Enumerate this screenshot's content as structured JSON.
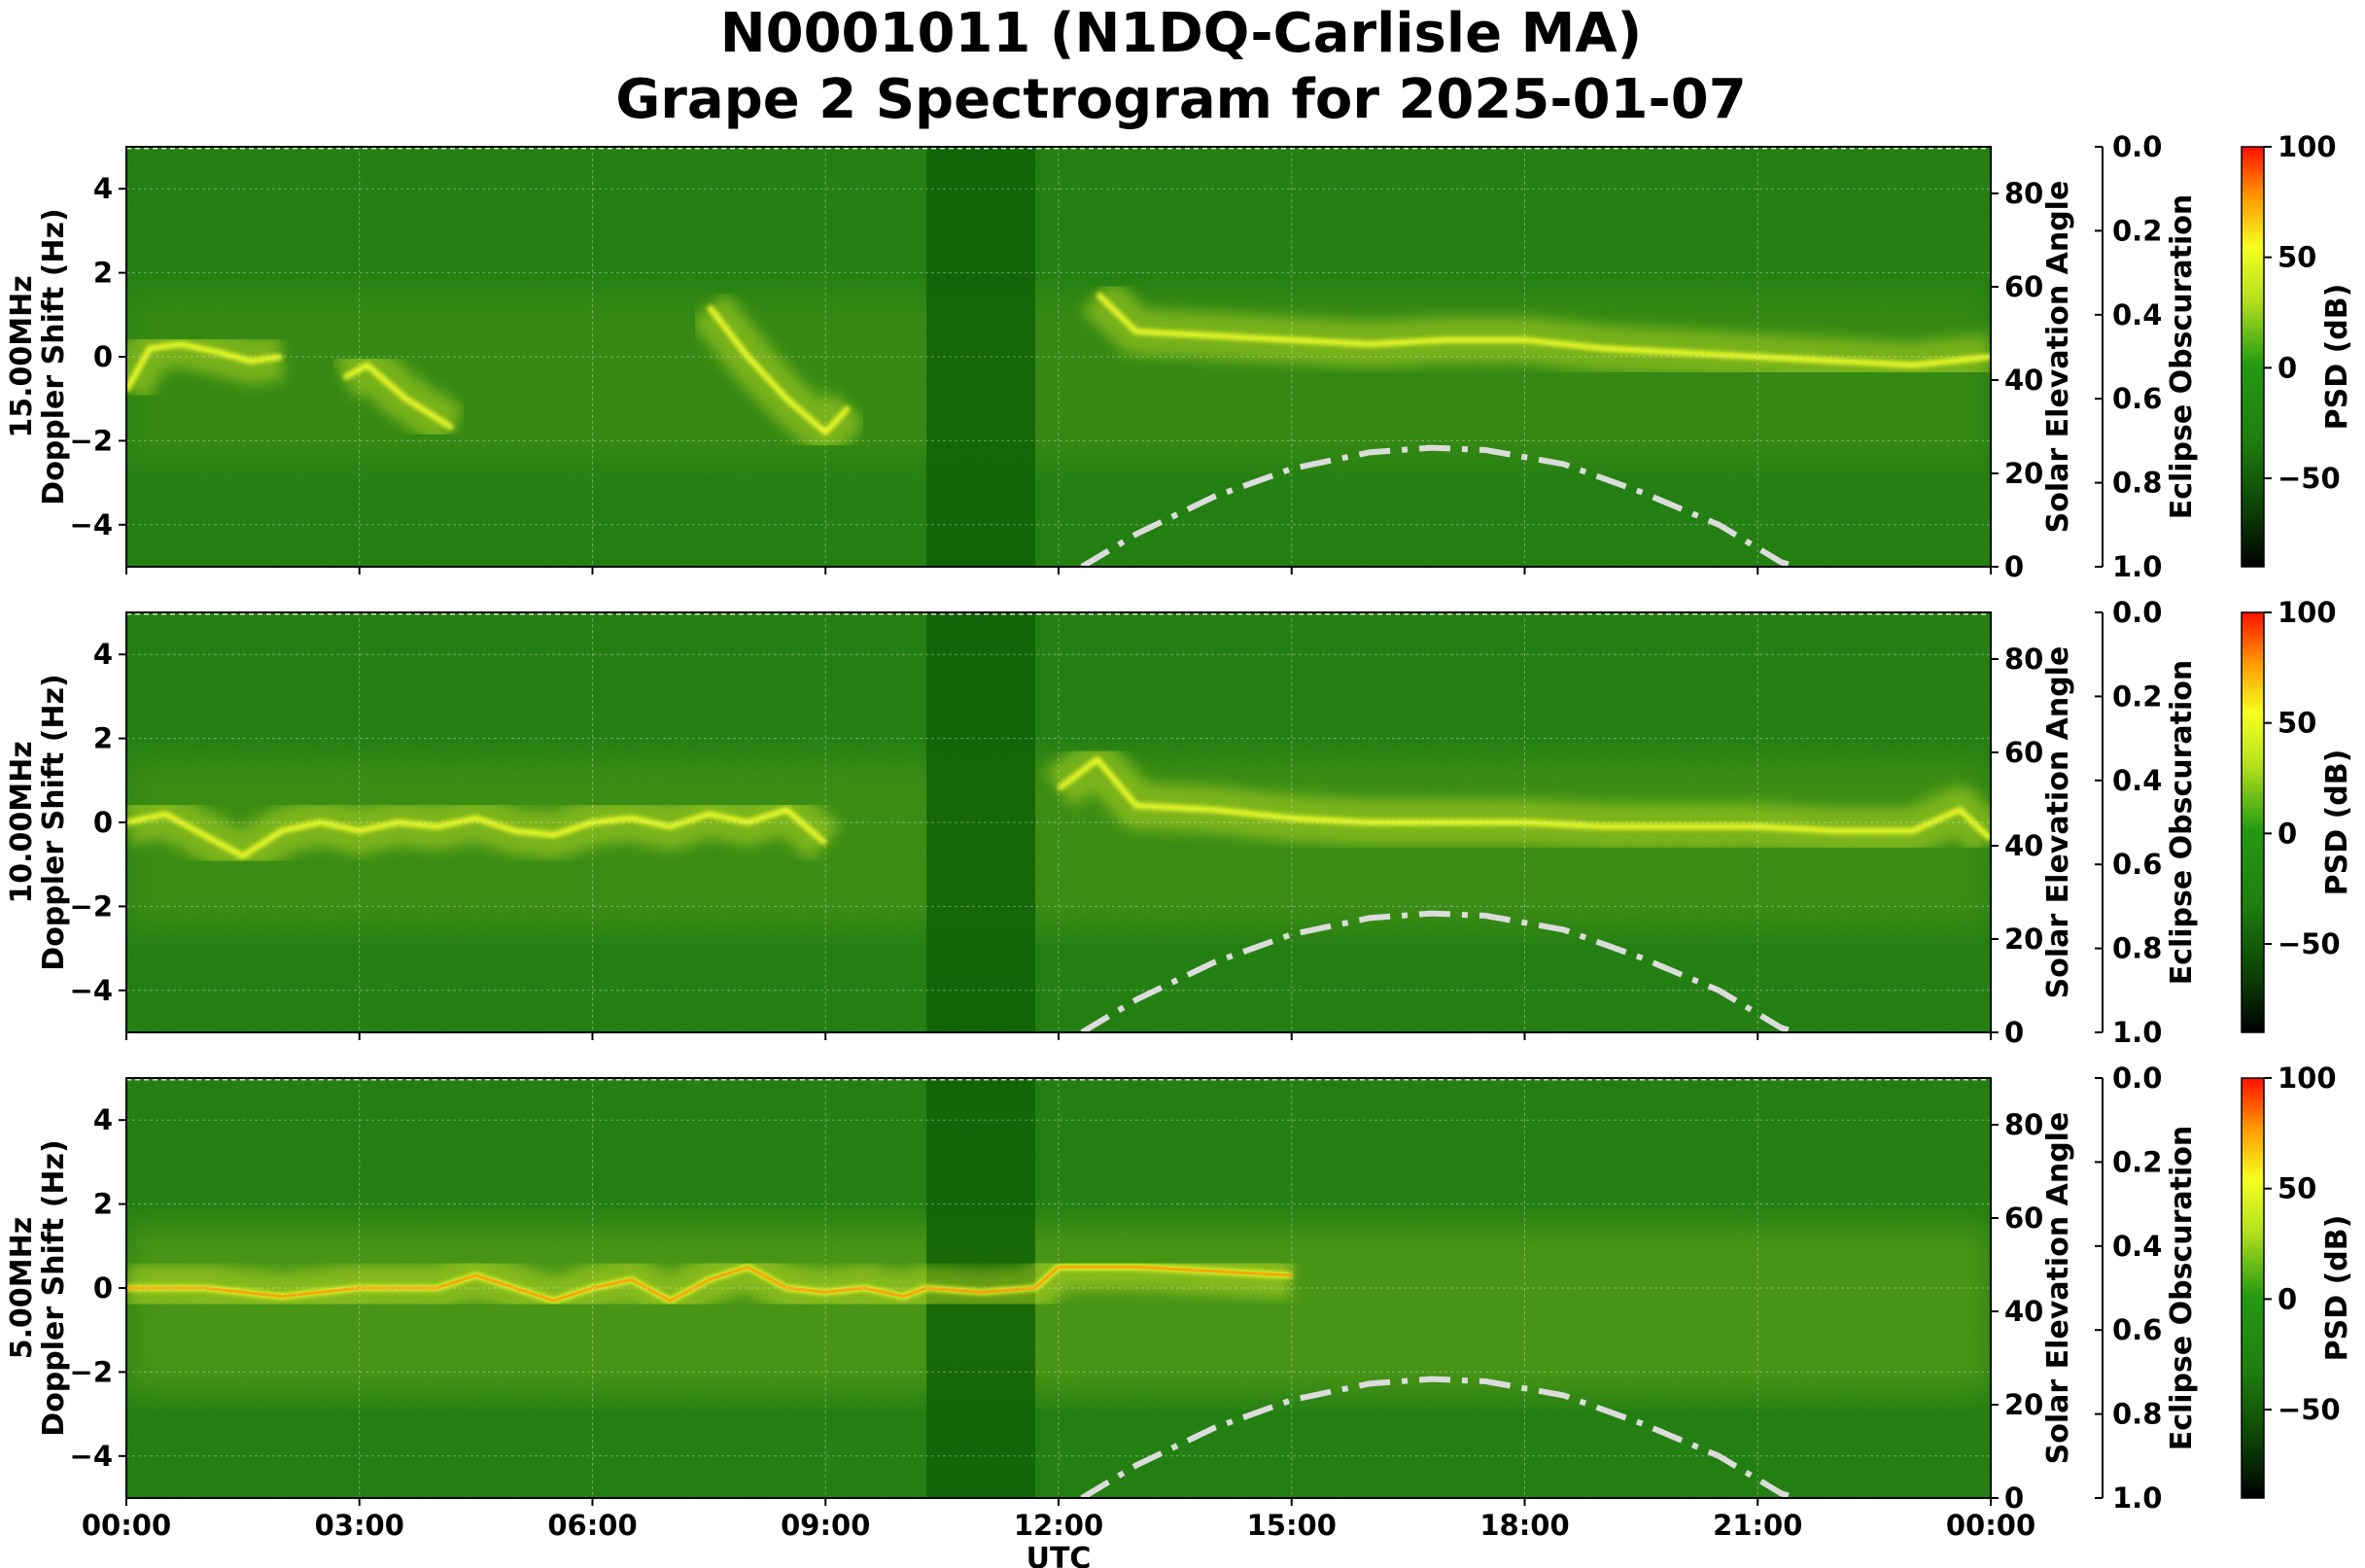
{
  "title_line1": "N0001011 (N1DQ-Carlisle MA)",
  "title_line2": "Grape 2 Spectrogram for 2025-01-07",
  "colors": {
    "background_green": "#1e7d0e",
    "dark_band": "#0f6206",
    "signal_yellow": "#f5ff2a",
    "signal_orange": "#ff8c00",
    "solar_curve": "#dcdcdc"
  },
  "chart_data": [
    {
      "type": "heatmap",
      "panel": "15.00MHz",
      "ylabel_line1": "15.00MHz",
      "ylabel_line2": "Doppler Shift (Hz)",
      "right_label": "Solar Elevation Angle",
      "eclipse_label": "Eclipse Obscuration",
      "colorbar_label": "PSD (dB)",
      "xlabel": "",
      "ylim": [
        -5,
        5
      ],
      "yticks": [
        "4",
        "2",
        "0",
        "−2",
        "−4"
      ],
      "solar_ticks": [
        "80",
        "60",
        "40",
        "20",
        "0"
      ],
      "eclipse_ticks": [
        "0.0",
        "0.2",
        "0.4",
        "0.6",
        "0.8",
        "1.0"
      ],
      "colorbar_ticks": [
        "100",
        "50",
        "0",
        "−50"
      ],
      "dark_band_utc_hours": [
        10.3,
        11.7
      ],
      "doppler_trace_hz": [
        [
          0.0,
          -0.8
        ],
        [
          0.3,
          0.2
        ],
        [
          0.7,
          0.3
        ],
        [
          1.2,
          0.1
        ],
        [
          1.6,
          -0.1
        ],
        [
          2.0,
          0.0
        ]
      ],
      "doppler_trace2_hz": [
        [
          2.8,
          -0.5
        ],
        [
          3.1,
          -0.2
        ],
        [
          3.6,
          -1.0
        ],
        [
          4.2,
          -1.7
        ]
      ],
      "doppler_trace3_hz": [
        [
          7.5,
          1.2
        ],
        [
          8.0,
          0.0
        ],
        [
          8.5,
          -1.0
        ],
        [
          9.0,
          -1.8
        ],
        [
          9.3,
          -1.2
        ]
      ],
      "doppler_trace4_hz": [
        [
          12.5,
          1.5
        ],
        [
          13.0,
          0.6
        ],
        [
          14.0,
          0.5
        ],
        [
          15.0,
          0.4
        ],
        [
          16.0,
          0.3
        ],
        [
          17.0,
          0.4
        ],
        [
          18.0,
          0.4
        ],
        [
          19.0,
          0.2
        ],
        [
          20.0,
          0.1
        ],
        [
          21.0,
          0.0
        ],
        [
          22.0,
          -0.1
        ],
        [
          23.0,
          -0.2
        ],
        [
          24.0,
          0.0
        ]
      ],
      "solar_elevation_deg": [
        [
          12.3,
          0
        ],
        [
          13.0,
          7
        ],
        [
          14.0,
          15
        ],
        [
          15.0,
          21
        ],
        [
          16.0,
          24.5
        ],
        [
          16.8,
          25.5
        ],
        [
          17.5,
          25
        ],
        [
          18.5,
          22
        ],
        [
          19.5,
          16
        ],
        [
          20.5,
          9
        ],
        [
          21.3,
          1
        ],
        [
          21.5,
          0
        ]
      ]
    },
    {
      "type": "heatmap",
      "panel": "10.00MHz",
      "ylabel_line1": "10.00MHz",
      "ylabel_line2": "Doppler Shift (Hz)",
      "right_label": "Solar Elevation Angle",
      "eclipse_label": "Eclipse Obscuration",
      "colorbar_label": "PSD (dB)",
      "xlabel": "",
      "ylim": [
        -5,
        5
      ],
      "yticks": [
        "4",
        "2",
        "0",
        "−2",
        "−4"
      ],
      "solar_ticks": [
        "80",
        "60",
        "40",
        "20",
        "0"
      ],
      "eclipse_ticks": [
        "0.0",
        "0.2",
        "0.4",
        "0.6",
        "0.8",
        "1.0"
      ],
      "colorbar_ticks": [
        "100",
        "50",
        "0",
        "−50"
      ],
      "dark_band_utc_hours": [
        10.3,
        11.7
      ],
      "doppler_trace_hz": [
        [
          0.0,
          0.0
        ],
        [
          0.5,
          0.2
        ],
        [
          1.0,
          -0.3
        ],
        [
          1.5,
          -0.8
        ],
        [
          2.0,
          -0.2
        ],
        [
          2.5,
          0.0
        ],
        [
          3.0,
          -0.2
        ],
        [
          3.5,
          0.0
        ],
        [
          4.0,
          -0.1
        ],
        [
          4.5,
          0.1
        ],
        [
          5.0,
          -0.2
        ],
        [
          5.5,
          -0.3
        ],
        [
          6.0,
          0.0
        ],
        [
          6.5,
          0.1
        ],
        [
          7.0,
          -0.1
        ],
        [
          7.5,
          0.2
        ],
        [
          8.0,
          0.0
        ],
        [
          8.5,
          0.3
        ],
        [
          9.0,
          -0.5
        ]
      ],
      "doppler_trace2_hz": [
        [
          12.0,
          0.8
        ],
        [
          12.5,
          1.5
        ],
        [
          13.0,
          0.4
        ],
        [
          14.0,
          0.3
        ],
        [
          15.0,
          0.1
        ],
        [
          16.0,
          0.0
        ],
        [
          17.0,
          0.0
        ],
        [
          18.0,
          0.0
        ],
        [
          19.0,
          -0.1
        ],
        [
          20.0,
          -0.1
        ],
        [
          21.0,
          -0.1
        ],
        [
          22.0,
          -0.2
        ],
        [
          23.0,
          -0.2
        ],
        [
          23.6,
          0.3
        ],
        [
          24.0,
          -0.4
        ]
      ],
      "solar_elevation_deg": [
        [
          12.3,
          0
        ],
        [
          13.0,
          7
        ],
        [
          14.0,
          15
        ],
        [
          15.0,
          21
        ],
        [
          16.0,
          24.5
        ],
        [
          16.8,
          25.5
        ],
        [
          17.5,
          25
        ],
        [
          18.5,
          22
        ],
        [
          19.5,
          16
        ],
        [
          20.5,
          9
        ],
        [
          21.3,
          1
        ],
        [
          21.5,
          0
        ]
      ]
    },
    {
      "type": "heatmap",
      "panel": "5.00MHz",
      "ylabel_line1": "5.00MHz",
      "ylabel_line2": "Doppler Shift (Hz)",
      "right_label": "Solar Elevation Angle",
      "eclipse_label": "Eclipse Obscuration",
      "colorbar_label": "PSD (dB)",
      "xlabel": "UTC",
      "ylim": [
        -5,
        5
      ],
      "yticks": [
        "4",
        "2",
        "0",
        "−2",
        "−4"
      ],
      "solar_ticks": [
        "80",
        "60",
        "40",
        "20",
        "0"
      ],
      "eclipse_ticks": [
        "0.0",
        "0.2",
        "0.4",
        "0.6",
        "0.8",
        "1.0"
      ],
      "colorbar_ticks": [
        "100",
        "50",
        "0",
        "−50"
      ],
      "xticks": [
        "00:00",
        "03:00",
        "06:00",
        "09:00",
        "12:00",
        "15:00",
        "18:00",
        "21:00",
        "00:00"
      ],
      "dark_band_utc_hours": [
        10.3,
        11.7
      ],
      "doppler_trace_hz": [
        [
          0.0,
          0.0
        ],
        [
          1.0,
          0.0
        ],
        [
          2.0,
          -0.2
        ],
        [
          3.0,
          0.0
        ],
        [
          4.0,
          0.0
        ],
        [
          4.5,
          0.3
        ],
        [
          5.0,
          0.0
        ],
        [
          5.5,
          -0.3
        ],
        [
          6.0,
          0.0
        ],
        [
          6.5,
          0.2
        ],
        [
          7.0,
          -0.3
        ],
        [
          7.5,
          0.2
        ],
        [
          8.0,
          0.5
        ],
        [
          8.5,
          0.0
        ],
        [
          9.0,
          -0.1
        ],
        [
          9.5,
          0.0
        ],
        [
          10.0,
          -0.2
        ],
        [
          10.3,
          0.0
        ],
        [
          11.0,
          -0.1
        ],
        [
          11.7,
          0.0
        ],
        [
          12.0,
          0.5
        ],
        [
          13.0,
          0.5
        ],
        [
          14.0,
          0.4
        ],
        [
          15.0,
          0.3
        ]
      ],
      "solar_elevation_deg": [
        [
          12.3,
          0
        ],
        [
          13.0,
          7
        ],
        [
          14.0,
          15
        ],
        [
          15.0,
          21
        ],
        [
          16.0,
          24.5
        ],
        [
          16.8,
          25.5
        ],
        [
          17.5,
          25
        ],
        [
          18.5,
          22
        ],
        [
          19.5,
          16
        ],
        [
          20.5,
          9
        ],
        [
          21.3,
          1
        ],
        [
          21.5,
          0
        ]
      ]
    }
  ]
}
